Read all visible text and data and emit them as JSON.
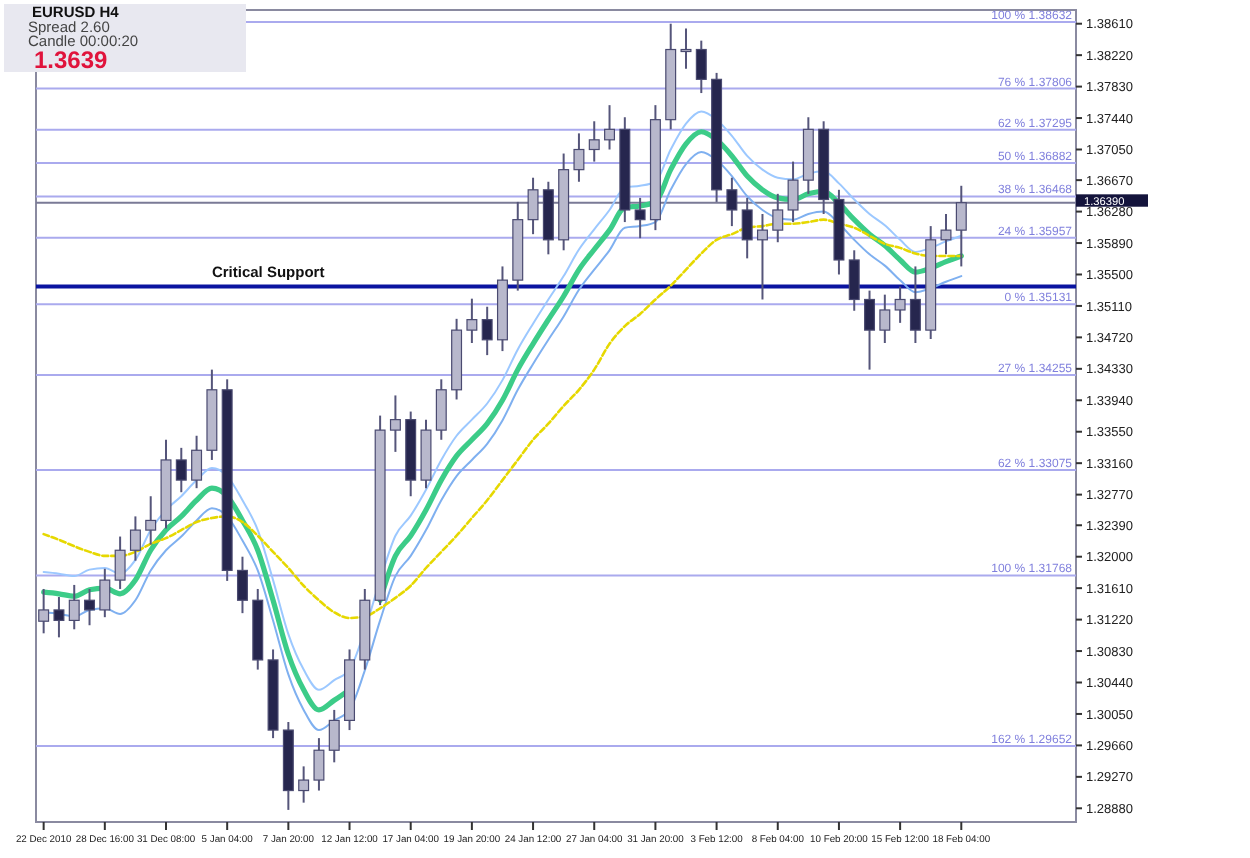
{
  "chart_data": {
    "type": "candlestick",
    "title": "EURUSD  H4",
    "annotations": [
      "Spread  2.60",
      "Candle  00:00:20",
      "1.3639"
    ],
    "categories": [
      "22 Dec 2010",
      null,
      null,
      null,
      "28 Dec 16:00",
      null,
      null,
      null,
      "31 Dec 08:00",
      null,
      null,
      null,
      "5 Jan 04:00",
      null,
      null,
      null,
      "7 Jan 20:00",
      null,
      null,
      null,
      "12 Jan 12:00",
      null,
      null,
      null,
      "17 Jan 04:00",
      null,
      null,
      null,
      "19 Jan 20:00",
      null,
      null,
      null,
      "24 Jan 12:00",
      null,
      null,
      null,
      "27 Jan 04:00",
      null,
      null,
      null,
      "31 Jan 20:00",
      null,
      null,
      null,
      "3 Feb 12:00",
      null,
      null,
      null,
      "8 Feb 04:00",
      null,
      null,
      null,
      "10 Feb 20:00",
      null,
      null,
      null,
      "15 Feb 12:00",
      null,
      null,
      null,
      "18 Feb 04:00",
      null,
      null,
      null,
      null,
      null,
      null,
      null
    ],
    "ohlc": [
      [
        1.312,
        1.316,
        1.3105,
        1.3134
      ],
      [
        1.3134,
        1.315,
        1.31,
        1.3121
      ],
      [
        1.3121,
        1.3165,
        1.311,
        1.3146
      ],
      [
        1.3146,
        1.316,
        1.3115,
        1.3134
      ],
      [
        1.3134,
        1.3185,
        1.3125,
        1.3171
      ],
      [
        1.3171,
        1.3225,
        1.316,
        1.3208
      ],
      [
        1.3208,
        1.325,
        1.3195,
        1.3233
      ],
      [
        1.3233,
        1.3275,
        1.3215,
        1.3245
      ],
      [
        1.3245,
        1.3345,
        1.3235,
        1.332
      ],
      [
        1.332,
        1.3335,
        1.328,
        1.3295
      ],
      [
        1.3295,
        1.335,
        1.3285,
        1.3332
      ],
      [
        1.3332,
        1.3432,
        1.332,
        1.3407
      ],
      [
        1.3407,
        1.342,
        1.317,
        1.3183
      ],
      [
        1.3183,
        1.32,
        1.313,
        1.3146
      ],
      [
        1.3146,
        1.316,
        1.306,
        1.3072
      ],
      [
        1.3072,
        1.3085,
        1.2975,
        1.2985
      ],
      [
        1.2985,
        1.2995,
        1.2886,
        1.291
      ],
      [
        1.291,
        1.294,
        1.2895,
        1.2923
      ],
      [
        1.2923,
        1.2975,
        1.291,
        1.296
      ],
      [
        1.296,
        1.301,
        1.2945,
        1.2997
      ],
      [
        1.2997,
        1.3085,
        1.2985,
        1.3072
      ],
      [
        1.3072,
        1.316,
        1.306,
        1.3146
      ],
      [
        1.3146,
        1.3375,
        1.314,
        1.3357
      ],
      [
        1.3357,
        1.34,
        1.333,
        1.337
      ],
      [
        1.337,
        1.338,
        1.3275,
        1.3295
      ],
      [
        1.3295,
        1.337,
        1.3285,
        1.3357
      ],
      [
        1.3357,
        1.342,
        1.3345,
        1.3407
      ],
      [
        1.3407,
        1.3495,
        1.3395,
        1.3481
      ],
      [
        1.3481,
        1.352,
        1.3465,
        1.3494
      ],
      [
        1.3494,
        1.351,
        1.345,
        1.3469
      ],
      [
        1.3469,
        1.356,
        1.3455,
        1.3543
      ],
      [
        1.3543,
        1.364,
        1.353,
        1.3618
      ],
      [
        1.3618,
        1.367,
        1.36,
        1.3655
      ],
      [
        1.3655,
        1.3665,
        1.3575,
        1.3593
      ],
      [
        1.3593,
        1.37,
        1.358,
        1.368
      ],
      [
        1.368,
        1.3725,
        1.3665,
        1.3705
      ],
      [
        1.3705,
        1.374,
        1.369,
        1.3717
      ],
      [
        1.3717,
        1.376,
        1.3705,
        1.373
      ],
      [
        1.373,
        1.3745,
        1.3615,
        1.363
      ],
      [
        1.363,
        1.3645,
        1.3595,
        1.3618
      ],
      [
        1.3618,
        1.376,
        1.3605,
        1.3742
      ],
      [
        1.3742,
        1.3861,
        1.373,
        1.3829
      ],
      [
        1.3829,
        1.3855,
        1.3805,
        1.3829
      ],
      [
        1.3829,
        1.384,
        1.3775,
        1.3792
      ],
      [
        1.3792,
        1.38,
        1.364,
        1.3655
      ],
      [
        1.3655,
        1.367,
        1.361,
        1.363
      ],
      [
        1.363,
        1.3645,
        1.357,
        1.3593
      ],
      [
        1.3593,
        1.3625,
        1.3519,
        1.3605
      ],
      [
        1.3605,
        1.365,
        1.359,
        1.363
      ],
      [
        1.363,
        1.369,
        1.3615,
        1.3667
      ],
      [
        1.3667,
        1.3745,
        1.365,
        1.373
      ],
      [
        1.373,
        1.374,
        1.3625,
        1.3643
      ],
      [
        1.3643,
        1.3655,
        1.355,
        1.3568
      ],
      [
        1.3568,
        1.358,
        1.3505,
        1.3519
      ],
      [
        1.3519,
        1.353,
        1.3432,
        1.3481
      ],
      [
        1.3481,
        1.3525,
        1.3465,
        1.3506
      ],
      [
        1.3506,
        1.3535,
        1.349,
        1.3519
      ],
      [
        1.3519,
        1.356,
        1.3465,
        1.3481
      ],
      [
        1.3481,
        1.361,
        1.347,
        1.3593
      ],
      [
        1.3593,
        1.3625,
        1.3575,
        1.3605
      ],
      [
        1.3605,
        1.366,
        1.356,
        1.3639
      ],
      null,
      null,
      null,
      null,
      null,
      null,
      null
    ],
    "series": [
      {
        "type": "line",
        "color": "#9cc8ff",
        "values": [
          1.3181,
          1.3179,
          1.3176,
          1.3184,
          1.3186,
          1.3179,
          1.3196,
          1.3233,
          1.3258,
          1.3275,
          1.3295,
          1.331,
          1.33,
          1.327,
          1.3233,
          1.3171,
          1.3104,
          1.306,
          1.3035,
          1.3047,
          1.306,
          1.3109,
          1.3171,
          1.3226,
          1.3251,
          1.3283,
          1.332,
          1.335,
          1.337,
          1.339,
          1.3419,
          1.3457,
          1.3489,
          1.3519,
          1.3548,
          1.3581,
          1.3606,
          1.363,
          1.3658,
          1.366,
          1.3665,
          1.3705,
          1.3737,
          1.3752,
          1.3742,
          1.3722,
          1.3697,
          1.368,
          1.367,
          1.3668,
          1.3675,
          1.3678,
          1.3663,
          1.3643,
          1.3625,
          1.3611,
          1.3593,
          1.3578,
          1.3583,
          1.3591,
          1.3598,
          null,
          null,
          null,
          null,
          null,
          null,
          null
        ]
      },
      {
        "type": "line",
        "color": "#7fb0f0",
        "values": [
          1.3131,
          1.3129,
          1.3126,
          1.3134,
          1.3136,
          1.3129,
          1.3146,
          1.3183,
          1.3208,
          1.3225,
          1.3245,
          1.326,
          1.325,
          1.322,
          1.3183,
          1.3121,
          1.3054,
          1.301,
          1.2985,
          1.2997,
          1.301,
          1.3059,
          1.3121,
          1.3176,
          1.3201,
          1.3233,
          1.327,
          1.33,
          1.332,
          1.334,
          1.3369,
          1.3407,
          1.3439,
          1.3469,
          1.3498,
          1.3531,
          1.3556,
          1.358,
          1.3608,
          1.361,
          1.3615,
          1.3655,
          1.3687,
          1.3702,
          1.3692,
          1.3672,
          1.3647,
          1.363,
          1.362,
          1.3618,
          1.3625,
          1.3628,
          1.3613,
          1.3593,
          1.3575,
          1.3561,
          1.3543,
          1.3528,
          1.3533,
          1.3541,
          1.3548,
          null,
          null,
          null,
          null,
          null,
          null,
          null
        ]
      },
      {
        "type": "line",
        "color": "#e6d800",
        "line_style": "dashed",
        "values": [
          1.3228,
          1.3221,
          1.3213,
          1.3206,
          1.3201,
          1.3201,
          1.3206,
          1.3216,
          1.3223,
          1.3233,
          1.3243,
          1.3248,
          1.325,
          1.3243,
          1.3226,
          1.3206,
          1.3186,
          1.3164,
          1.3146,
          1.3131,
          1.3124,
          1.3126,
          1.3136,
          1.3149,
          1.3164,
          1.3186,
          1.3206,
          1.3226,
          1.3248,
          1.327,
          1.3295,
          1.332,
          1.3345,
          1.3365,
          1.3387,
          1.3407,
          1.3432,
          1.3464,
          1.3486,
          1.3501,
          1.3519,
          1.3536,
          1.3556,
          1.3576,
          1.3593,
          1.36,
          1.3608,
          1.361,
          1.3613,
          1.3613,
          1.3615,
          1.3618,
          1.3613,
          1.3608,
          1.3598,
          1.3588,
          1.3583,
          1.3576,
          1.3573,
          1.3573,
          1.3573,
          null,
          null,
          null,
          null,
          null,
          null,
          null
        ]
      },
      {
        "type": "line",
        "color": "#3ccc88",
        "values": [
          1.3156,
          1.3154,
          1.3151,
          1.3159,
          1.3161,
          1.3154,
          1.3171,
          1.3208,
          1.3233,
          1.325,
          1.327,
          1.3285,
          1.3275,
          1.3245,
          1.3208,
          1.3146,
          1.3079,
          1.3035,
          1.301,
          1.3022,
          1.3035,
          null,
          1.3146,
          1.3201,
          1.3226,
          1.3258,
          1.3295,
          1.3325,
          1.3345,
          1.3365,
          1.3394,
          1.3432,
          1.3464,
          1.3494,
          1.3523,
          1.3556,
          1.3581,
          1.3605,
          1.3633,
          1.3635,
          1.364,
          1.368,
          1.3712,
          1.3727,
          1.3717,
          1.3697,
          1.3672,
          1.3655,
          1.3645,
          1.3643,
          1.365,
          1.3653,
          1.3638,
          1.3618,
          1.36,
          1.3586,
          1.3568,
          1.3553,
          1.3558,
          1.3566,
          1.3573,
          null,
          null,
          null,
          null,
          null,
          null,
          null
        ]
      }
    ],
    "ylim": [
      1.2871,
      1.3878
    ],
    "yticks": [
      {
        "value": 1.3861,
        "label": "1.38610"
      },
      {
        "value": 1.3822,
        "label": "1.38220"
      },
      {
        "value": 1.3783,
        "label": "1.37830"
      },
      {
        "value": 1.3744,
        "label": "1.37440"
      },
      {
        "value": 1.3705,
        "label": "1.37050"
      },
      {
        "value": 1.3667,
        "label": "1.36670"
      },
      {
        "value": 1.3628,
        "label": "1.36280"
      },
      {
        "value": 1.3589,
        "label": "1.35890"
      },
      {
        "value": 1.355,
        "label": "1.35500"
      },
      {
        "value": 1.3511,
        "label": "1.35110"
      },
      {
        "value": 1.3472,
        "label": "1.34720"
      },
      {
        "value": 1.3433,
        "label": "1.34330"
      },
      {
        "value": 1.3394,
        "label": "1.33940"
      },
      {
        "value": 1.3355,
        "label": "1.33550"
      },
      {
        "value": 1.3316,
        "label": "1.33160"
      },
      {
        "value": 1.3277,
        "label": "1.32770"
      },
      {
        "value": 1.3239,
        "label": "1.32390"
      },
      {
        "value": 1.32,
        "label": "1.32000"
      },
      {
        "value": 1.3161,
        "label": "1.31610"
      },
      {
        "value": 1.3122,
        "label": "1.31220"
      },
      {
        "value": 1.3083,
        "label": "1.30830"
      },
      {
        "value": 1.3044,
        "label": "1.30440"
      },
      {
        "value": 1.3005,
        "label": "1.30050"
      },
      {
        "value": 1.2966,
        "label": "1.29660"
      },
      {
        "value": 1.2927,
        "label": "1.29270"
      },
      {
        "value": 1.2888,
        "label": "1.28880"
      }
    ],
    "ref_lines": [
      {
        "axis": "y",
        "value": 1.3535,
        "label": "Critical Support",
        "color": "#0a14a0"
      },
      {
        "axis": "y",
        "value": 1.3639,
        "label": "1.36390",
        "color": "#7a7a96"
      },
      {
        "axis": "y",
        "value": 1.38632,
        "label": "100 %  1.38632",
        "color": "#aaaaee"
      },
      {
        "axis": "y",
        "value": 1.37806,
        "label": "76 %  1.37806",
        "color": "#aaaaee"
      },
      {
        "axis": "y",
        "value": 1.37295,
        "label": "62 %  1.37295",
        "color": "#aaaaee"
      },
      {
        "axis": "y",
        "value": 1.36882,
        "label": "50 %  1.36882",
        "color": "#aaaaee"
      },
      {
        "axis": "y",
        "value": 1.36468,
        "label": "38 %  1.36468",
        "color": "#aaaaee"
      },
      {
        "axis": "y",
        "value": 1.35957,
        "label": "24 %  1.35957",
        "color": "#aaaaee"
      },
      {
        "axis": "y",
        "value": 1.35131,
        "label": "0 %  1.35131",
        "color": "#aaaaee"
      },
      {
        "axis": "y",
        "value": 1.34255,
        "label": "27 %  1.34255",
        "color": "#aaaaee"
      },
      {
        "axis": "y",
        "value": 1.33075,
        "label": "62 %  1.33075",
        "color": "#aaaaee"
      },
      {
        "axis": "y",
        "value": 1.31768,
        "label": "100 %  1.31768",
        "color": "#aaaaee"
      },
      {
        "axis": "y",
        "value": 1.29652,
        "label": "162 %  1.29652",
        "color": "#aaaaee"
      }
    ]
  }
}
